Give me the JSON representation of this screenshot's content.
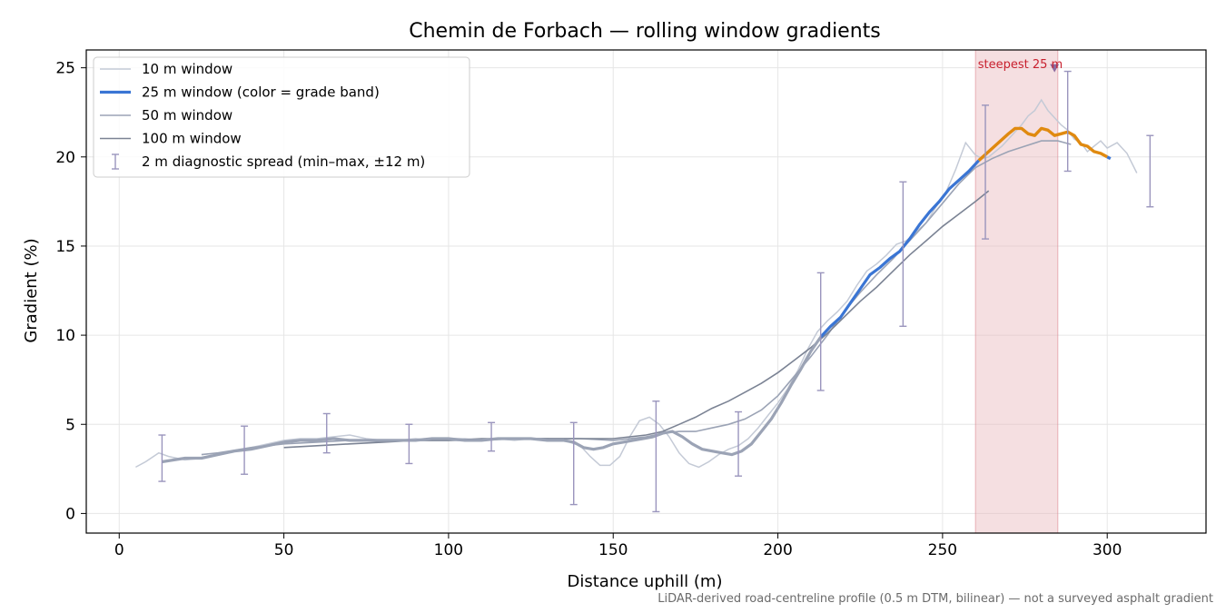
{
  "chart_data": {
    "type": "line",
    "title": "Chemin de Forbach — rolling window gradients",
    "xlabel": "Distance uphill (m)",
    "ylabel": "Gradient (%)",
    "xlim": [
      -10,
      330
    ],
    "ylim": [
      -1.1,
      26
    ],
    "xticks": [
      0,
      50,
      100,
      150,
      200,
      250,
      300
    ],
    "yticks": [
      0,
      5,
      10,
      15,
      20,
      25
    ],
    "grid": true,
    "legend_position": "top-left",
    "legend": [
      "10 m window",
      "25 m window (color = grade band)",
      "50 m window",
      "100 m window",
      "2 m diagnostic spread (min–max, ±12 m)"
    ],
    "series": [
      {
        "name": "10 m window",
        "color": "#c4cad6",
        "x": [
          5,
          8,
          12,
          15,
          20,
          25,
          30,
          35,
          40,
          45,
          50,
          55,
          60,
          65,
          70,
          75,
          80,
          85,
          90,
          95,
          100,
          105,
          110,
          115,
          120,
          125,
          130,
          135,
          140,
          143,
          146,
          149,
          152,
          155,
          158,
          161,
          164,
          167,
          170,
          173,
          176,
          179,
          182,
          185,
          188,
          191,
          194,
          197,
          200,
          203,
          206,
          209,
          212,
          215,
          218,
          221,
          224,
          227,
          230,
          233,
          236,
          239,
          242,
          245,
          248,
          251,
          254,
          257,
          260,
          262,
          264,
          266,
          268,
          270,
          272,
          274,
          276,
          278,
          280,
          282,
          284,
          286,
          288,
          290,
          292,
          294,
          296,
          298,
          300,
          303,
          306,
          309
        ],
        "y": [
          2.6,
          2.9,
          3.4,
          3.2,
          3.0,
          3.1,
          3.3,
          3.5,
          3.7,
          3.9,
          4.1,
          4.2,
          4.2,
          4.3,
          4.4,
          4.2,
          4.1,
          4.1,
          4.2,
          4.1,
          4.2,
          4.2,
          4.1,
          4.2,
          4.1,
          4.2,
          4.2,
          4.1,
          3.8,
          3.2,
          2.7,
          2.7,
          3.2,
          4.3,
          5.2,
          5.4,
          5.0,
          4.3,
          3.4,
          2.8,
          2.6,
          2.9,
          3.3,
          3.6,
          3.8,
          4.2,
          4.8,
          5.5,
          6.2,
          7.0,
          8.0,
          9.2,
          10.2,
          10.8,
          11.3,
          11.9,
          12.8,
          13.6,
          14.0,
          14.5,
          15.1,
          15.3,
          15.8,
          16.3,
          17.2,
          18.0,
          19.3,
          20.8,
          20.1,
          19.9,
          20.0,
          20.3,
          20.6,
          21.0,
          21.4,
          21.8,
          22.3,
          22.6,
          23.2,
          22.6,
          22.2,
          21.8,
          21.5,
          21.0,
          20.8,
          20.3,
          20.6,
          20.9,
          20.5,
          20.8,
          20.2,
          19.1
        ]
      },
      {
        "name": "25 m window (color = grade band)",
        "color": "#3a75d4",
        "x": [
          13,
          20,
          25,
          30,
          35,
          40,
          45,
          50,
          55,
          60,
          65,
          70,
          75,
          80,
          85,
          90,
          95,
          100,
          105,
          110,
          115,
          120,
          125,
          130,
          135,
          138,
          141,
          144,
          147,
          150,
          153,
          156,
          159,
          162,
          165,
          168,
          171,
          174,
          177,
          180,
          183,
          186,
          189,
          192,
          195,
          198,
          201,
          204,
          207,
          210,
          213,
          216,
          219,
          222,
          225,
          228,
          231,
          234,
          237,
          240,
          243,
          246,
          249,
          252,
          255,
          258,
          261,
          264,
          267,
          270,
          272,
          274,
          276,
          278,
          280,
          282,
          284,
          286,
          288,
          290,
          292,
          294,
          296,
          298,
          300,
          301
        ],
        "y": [
          2.9,
          3.1,
          3.1,
          3.3,
          3.5,
          3.6,
          3.8,
          4.0,
          4.1,
          4.1,
          4.2,
          4.1,
          4.1,
          4.1,
          4.1,
          4.1,
          4.2,
          4.2,
          4.1,
          4.1,
          4.2,
          4.2,
          4.2,
          4.1,
          4.1,
          4.0,
          3.7,
          3.6,
          3.7,
          3.9,
          4.0,
          4.1,
          4.2,
          4.3,
          4.5,
          4.6,
          4.3,
          3.9,
          3.6,
          3.5,
          3.4,
          3.3,
          3.5,
          3.9,
          4.6,
          5.3,
          6.2,
          7.2,
          8.1,
          9.1,
          9.9,
          10.5,
          11.0,
          11.8,
          12.6,
          13.4,
          13.8,
          14.3,
          14.7,
          15.4,
          16.2,
          16.9,
          17.5,
          18.2,
          18.7,
          19.2,
          19.8,
          20.3,
          20.8,
          21.3,
          21.6,
          21.6,
          21.3,
          21.2,
          21.6,
          21.5,
          21.2,
          21.3,
          21.4,
          21.2,
          20.7,
          20.6,
          20.3,
          20.2,
          20.0,
          19.9
        ]
      },
      {
        "name": "50 m window",
        "color": "#9ba3b5",
        "x": [
          25,
          30,
          40,
          50,
          60,
          70,
          80,
          90,
          100,
          110,
          120,
          130,
          140,
          150,
          160,
          165,
          170,
          175,
          180,
          185,
          190,
          195,
          200,
          205,
          210,
          215,
          220,
          225,
          230,
          235,
          240,
          245,
          250,
          255,
          260,
          265,
          270,
          275,
          280,
          285,
          289
        ],
        "y": [
          3.3,
          3.4,
          3.7,
          3.9,
          4.0,
          4.1,
          4.1,
          4.1,
          4.1,
          4.1,
          4.2,
          4.2,
          4.2,
          4.1,
          4.3,
          4.5,
          4.6,
          4.6,
          4.8,
          5.0,
          5.3,
          5.8,
          6.6,
          7.7,
          8.8,
          10.0,
          11.3,
          12.4,
          13.4,
          14.3,
          15.3,
          16.3,
          17.4,
          18.5,
          19.4,
          19.9,
          20.3,
          20.6,
          20.9,
          20.9,
          20.7
        ]
      },
      {
        "name": "100 m window",
        "color": "#7b8394",
        "x": [
          50,
          60,
          70,
          80,
          90,
          100,
          110,
          120,
          130,
          140,
          150,
          160,
          165,
          170,
          175,
          180,
          185,
          190,
          195,
          200,
          205,
          210,
          215,
          220,
          225,
          230,
          235,
          240,
          245,
          250,
          255,
          260,
          264
        ],
        "y": [
          3.7,
          3.8,
          3.9,
          4.0,
          4.1,
          4.1,
          4.2,
          4.2,
          4.2,
          4.2,
          4.2,
          4.4,
          4.6,
          5.0,
          5.4,
          5.9,
          6.3,
          6.8,
          7.3,
          7.9,
          8.6,
          9.3,
          10.1,
          11.0,
          11.9,
          12.7,
          13.6,
          14.5,
          15.3,
          16.1,
          16.8,
          17.5,
          18.1
        ]
      }
    ],
    "grade_band_highlight": {
      "color": "#e08a10",
      "x_from": 261,
      "x_to": 300
    },
    "error_bars": {
      "name": "2 m diagnostic spread (min–max, ±12 m)",
      "color": "#9a95bd",
      "x": [
        13,
        38,
        63,
        88,
        113,
        138,
        163,
        188,
        213,
        238,
        263,
        288,
        313
      ],
      "low": [
        1.8,
        2.2,
        3.4,
        2.8,
        3.5,
        0.5,
        0.1,
        2.1,
        6.9,
        10.5,
        15.4,
        19.2,
        17.2
      ],
      "high": [
        4.4,
        4.9,
        5.6,
        5.0,
        5.1,
        5.1,
        6.3,
        5.7,
        13.5,
        18.6,
        22.9,
        24.8,
        21.2
      ]
    },
    "annotations": {
      "steepest_label": "steepest 25 m",
      "steepest_span": [
        260,
        285
      ],
      "steepest_marker": {
        "x": 284,
        "y": 25.0
      },
      "span_color": "#e7b2b8",
      "label_color": "#c8202e"
    }
  },
  "footnote": "LiDAR-derived road-centreline profile (0.5 m DTM, bilinear) — not a surveyed asphalt gradient"
}
